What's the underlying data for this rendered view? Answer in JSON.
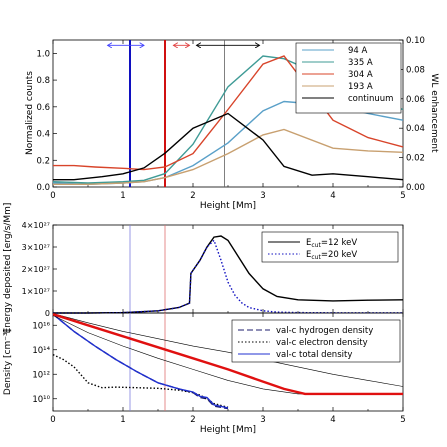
{
  "chart_data": [
    {
      "type": "line",
      "xlabel": "Height [Mm]",
      "ylabel": "Normalized counts",
      "y2label": "WL enhancement",
      "xlim": [
        0,
        5
      ],
      "ylim": [
        0,
        1.1
      ],
      "y2lim": [
        0,
        0.1
      ],
      "xticks": [
        "0",
        "1",
        "2",
        "3",
        "4",
        "5"
      ],
      "yticks": [
        "0.0",
        "0.2",
        "0.4",
        "0.6",
        "0.8",
        "1.0"
      ],
      "y2ticks": [
        "0.00",
        "0.02",
        "0.04",
        "0.06",
        "0.08",
        "0.10"
      ],
      "legend_position": "top-right",
      "series": [
        {
          "name": "94 A",
          "color": "#5aa0c8",
          "x": [
            0,
            0.5,
            1,
            1.3,
            1.6,
            2,
            2.5,
            3,
            3.3,
            4,
            4.5,
            5
          ],
          "y": [
            0.03,
            0.02,
            0.03,
            0.04,
            0.07,
            0.16,
            0.33,
            0.57,
            0.64,
            0.61,
            0.55,
            0.5
          ]
        },
        {
          "name": "335 A",
          "color": "#3f9b96",
          "x": [
            0,
            0.5,
            1,
            1.3,
            1.6,
            2,
            2.5,
            3,
            3.3,
            4,
            4.5,
            5
          ],
          "y": [
            0.04,
            0.03,
            0.04,
            0.05,
            0.1,
            0.32,
            0.75,
            0.98,
            0.96,
            0.8,
            0.67,
            0.58
          ]
        },
        {
          "name": "304 A",
          "color": "#d8442a",
          "x": [
            0,
            0.3,
            0.6,
            1,
            1.3,
            1.6,
            2,
            2.5,
            3,
            3.3,
            4,
            4.5,
            5
          ],
          "y": [
            0.16,
            0.16,
            0.15,
            0.14,
            0.13,
            0.15,
            0.25,
            0.58,
            0.92,
            0.98,
            0.5,
            0.37,
            0.3
          ]
        },
        {
          "name": "193 A",
          "color": "#c8a070",
          "x": [
            0,
            0.5,
            1,
            1.3,
            1.6,
            2,
            2.5,
            3,
            3.3,
            4,
            4.5,
            5
          ],
          "y": [
            0.02,
            0.02,
            0.03,
            0.04,
            0.07,
            0.13,
            0.25,
            0.39,
            0.43,
            0.29,
            0.27,
            0.26
          ]
        },
        {
          "name": "continuum",
          "color": "#000000",
          "axis": "y2",
          "x": [
            0,
            0.3,
            0.7,
            1,
            1.3,
            1.6,
            2,
            2.5,
            3,
            3.3,
            3.7,
            4,
            4.5,
            5
          ],
          "y": [
            0.005,
            0.005,
            0.007,
            0.009,
            0.013,
            0.023,
            0.04,
            0.05,
            0.032,
            0.014,
            0.008,
            0.009,
            0.007,
            0.005
          ]
        }
      ],
      "vertical_lines": [
        {
          "x": 1.1,
          "color": "#1010c0"
        },
        {
          "x": 1.6,
          "color": "#d01010"
        },
        {
          "x": 2.45,
          "color": "#606060"
        }
      ],
      "arrows": [
        {
          "from": 0.78,
          "to": 1.3,
          "y": 1.0,
          "color": "#4040ff"
        },
        {
          "from": 1.72,
          "to": 1.95,
          "y": 1.0,
          "color": "#e04040"
        },
        {
          "from": 2.05,
          "to": 2.95,
          "y": 1.0,
          "color": "#000000"
        }
      ]
    },
    {
      "type": "line",
      "xlabel": "",
      "ylabel": "Energy deposited [erg/s/Mm]",
      "xlim": [
        0,
        5
      ],
      "ylim": [
        0,
        4e+27
      ],
      "yticks": [
        "0",
        "1×10²⁷",
        "2×10²⁷",
        "3×10²⁷",
        "4×10²⁷"
      ],
      "legend_position": "top-right",
      "series": [
        {
          "name": "E_cut=12 keV",
          "color": "#000000",
          "dash": "solid",
          "x": [
            0,
            0.5,
            1,
            1.5,
            1.8,
            1.95,
            1.97,
            2.1,
            2.2,
            2.3,
            2.4,
            2.5,
            2.6,
            2.8,
            3.0,
            3.2,
            3.5,
            4,
            4.5,
            5
          ],
          "y": [
            0,
            0,
            2e+25,
            1e+26,
            2.5e+26,
            4.5e+26,
            1.8e+27,
            2.4e+27,
            3e+27,
            3.45e+27,
            3.5e+27,
            3.3e+27,
            2.8e+27,
            1.8e+27,
            1.1e+27,
            7.5e+26,
            6e+26,
            5.5e+26,
            5.8e+26,
            6e+26
          ]
        },
        {
          "name": "E_cut=20 keV",
          "color": "#1010c0",
          "dash": "dot",
          "x": [
            0,
            0.5,
            1,
            1.5,
            1.8,
            1.95,
            1.97,
            2.1,
            2.2,
            2.3,
            2.4,
            2.5,
            2.6,
            2.7,
            2.8,
            3.0,
            3.2,
            3.5,
            4,
            5
          ],
          "y": [
            0,
            0,
            2e+25,
            1e+26,
            2.5e+26,
            4.5e+26,
            1.8e+27,
            2.4e+27,
            3e+27,
            3.3e+27,
            2.4e+27,
            1.4e+27,
            8e+26,
            4.5e+26,
            2.5e+26,
            1e+26,
            4e+25,
            2e+25,
            1e+25,
            1e+25
          ]
        }
      ]
    },
    {
      "type": "line",
      "xlabel": "Height [Mm]",
      "ylabel": "Density [cm⁻³]",
      "xlim": [
        0,
        5
      ],
      "ylim": [
        9,
        17
      ],
      "log_scale": "y",
      "xticks": [
        "0",
        "1",
        "2",
        "3",
        "4",
        "5"
      ],
      "yticks": [
        "10¹⁰",
        "10¹²",
        "10¹⁴",
        "10¹⁶"
      ],
      "legend_position": "top-right",
      "series": [
        {
          "name": "val-c hydrogen density",
          "color": "#1c1c6e",
          "dash": "dash",
          "x": [
            0,
            0.3,
            0.6,
            0.9,
            1.2,
            1.5,
            1.8,
            2.0,
            2.1,
            2.2,
            2.3,
            2.5
          ],
          "y": [
            16.9,
            15.5,
            14.3,
            13.2,
            12.2,
            11.3,
            10.8,
            10.5,
            10.1,
            10.0,
            9.4,
            9.2
          ]
        },
        {
          "name": "val-c electron density",
          "color": "#000000",
          "dash": "dot",
          "x": [
            0,
            0.15,
            0.3,
            0.5,
            0.7,
            0.9,
            1.2,
            1.5,
            1.8,
            2.0,
            2.1,
            2.2,
            2.3,
            2.5
          ],
          "y": [
            13.6,
            13.2,
            12.6,
            11.3,
            10.9,
            10.95,
            10.9,
            10.85,
            10.7,
            10.5,
            10.3,
            10.0,
            9.6,
            9.3
          ]
        },
        {
          "name": "val-c total density",
          "color": "#2030d0",
          "dash": "solid",
          "x": [
            0,
            0.3,
            0.6,
            0.9,
            1.2,
            1.5,
            1.8,
            2.0,
            2.1,
            2.2,
            2.3,
            2.5
          ],
          "y": [
            16.9,
            15.5,
            14.3,
            13.2,
            12.2,
            11.3,
            10.8,
            10.55,
            10.2,
            10.1,
            9.5,
            9.25
          ]
        },
        {
          "color": "#000000",
          "dash": "solid",
          "width": 0.6,
          "x": [
            0,
            0.5,
            1,
            1.5,
            2,
            2.5,
            3,
            3.5,
            4,
            4.5,
            5
          ],
          "y": [
            16.95,
            16.2,
            15.5,
            14.9,
            14.3,
            13.8,
            13.2,
            12.6,
            12.0,
            11.5,
            11.0
          ]
        },
        {
          "color": "#000000",
          "dash": "solid",
          "width": 0.6,
          "x": [
            0,
            0.5,
            1,
            1.5,
            2,
            2.5,
            3,
            3.5,
            4
          ],
          "y": [
            16.8,
            15.4,
            14.3,
            13.3,
            12.4,
            11.5,
            10.8,
            10.4,
            10.4
          ]
        },
        {
          "color": "#e01010",
          "dash": "solid",
          "width": 2.4,
          "x": [
            0,
            0.5,
            1,
            1.5,
            2,
            2.5,
            3,
            3.3,
            3.6,
            4,
            4.5,
            5
          ],
          "y": [
            16.9,
            16.0,
            15.1,
            14.2,
            13.3,
            12.4,
            11.4,
            10.8,
            10.4,
            10.4,
            10.4,
            10.4
          ]
        }
      ]
    }
  ]
}
